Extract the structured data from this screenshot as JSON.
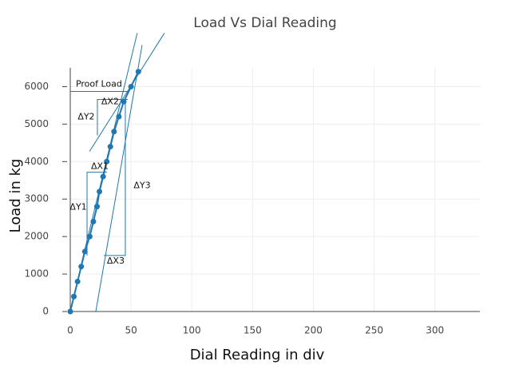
{
  "chart_data": {
    "type": "line",
    "title": "Load Vs Dial Reading",
    "x_label": "Dial Reading in div",
    "y_label": "Load in kg",
    "x": [
      0,
      3,
      6,
      9,
      12,
      16,
      19,
      22,
      24,
      27,
      30,
      33,
      36,
      40,
      44,
      50,
      56
    ],
    "values": [
      0,
      400,
      800,
      1200,
      1600,
      2000,
      2400,
      2800,
      3200,
      3600,
      4000,
      4400,
      4800,
      5200,
      5600,
      6000,
      6400
    ],
    "color": "#1f77b4",
    "xlim": [
      0,
      337
    ],
    "ylim": [
      0,
      6500
    ],
    "xticks": [
      0,
      50,
      100,
      150,
      200,
      250,
      300
    ],
    "yticks": [
      0,
      1000,
      2000,
      3000,
      4000,
      5000,
      6000
    ],
    "grid": true,
    "shapes": [
      {
        "x": [
          0,
          47.3
        ],
        "y": [
          5870,
          5870
        ]
      },
      {
        "x": [
          9.2,
          55.1
        ],
        "y": [
          1281,
          7431
        ]
      },
      {
        "x": [
          21,
          59.1
        ],
        "y": [
          0,
          7111
        ]
      },
      {
        "x": [
          15.8,
          77.5
        ],
        "y": [
          4271,
          7431
        ]
      },
      {
        "x": [
          13.8,
          13.8,
          30.2
        ],
        "y": [
          1495,
          3716,
          3716
        ]
      },
      {
        "x": [
          22.3,
          22.3,
          47.3
        ],
        "y": [
          4698,
          5659,
          5659
        ]
      },
      {
        "x": [
          27.6,
          45.3,
          45.3
        ],
        "y": [
          1495,
          1495,
          5659
        ]
      }
    ],
    "annotations": [
      {
        "text": "Proof Load",
        "x": 23.6,
        "y": 6064
      },
      {
        "text": "ΔX2",
        "x": 32.8,
        "y": 5595
      },
      {
        "text": "ΔY2",
        "x": 13.1,
        "y": 5189
      },
      {
        "text": "ΔX1",
        "x": 24.3,
        "y": 3865
      },
      {
        "text": "ΔY1",
        "x": 6.6,
        "y": 2776
      },
      {
        "text": "ΔX3",
        "x": 37.4,
        "y": 1345
      },
      {
        "text": "ΔY3",
        "x": 59.1,
        "y": 3352
      }
    ]
  }
}
